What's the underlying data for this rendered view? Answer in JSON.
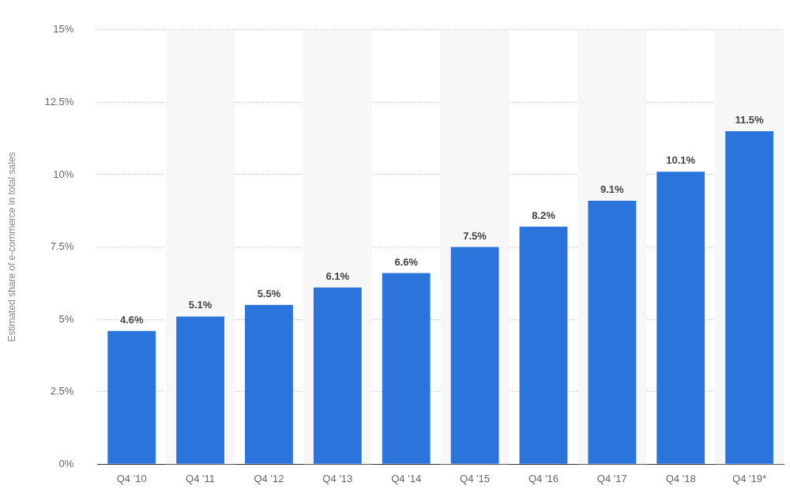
{
  "chart_data": {
    "type": "bar",
    "y_label": "Estimated share of e-commerce in total sales",
    "categories": [
      "Q4 '10",
      "Q4 '11",
      "Q4 '12",
      "Q4 '13",
      "Q4 '14",
      "Q4 '15",
      "Q4 '16",
      "Q4 '17",
      "Q4 '18",
      "Q4 '19*"
    ],
    "values": [
      4.6,
      5.1,
      5.5,
      6.1,
      6.6,
      7.5,
      8.2,
      9.1,
      10.1,
      11.5
    ],
    "value_labels": [
      "4.6%",
      "5.1%",
      "5.5%",
      "6.1%",
      "6.6%",
      "7.5%",
      "8.2%",
      "9.1%",
      "10.1%",
      "11.5%"
    ],
    "color": "#2a74db",
    "ylim": [
      0,
      15
    ],
    "yticks": [
      {
        "value": 0,
        "label": "0%"
      },
      {
        "value": 2.5,
        "label": "2.5%"
      },
      {
        "value": 5,
        "label": "5%"
      },
      {
        "value": 7.5,
        "label": "7.5%"
      },
      {
        "value": 10,
        "label": "10%"
      },
      {
        "value": 12.5,
        "label": "12.5%"
      },
      {
        "value": 15,
        "label": "15%"
      }
    ],
    "grid": true,
    "data_labels": true
  }
}
